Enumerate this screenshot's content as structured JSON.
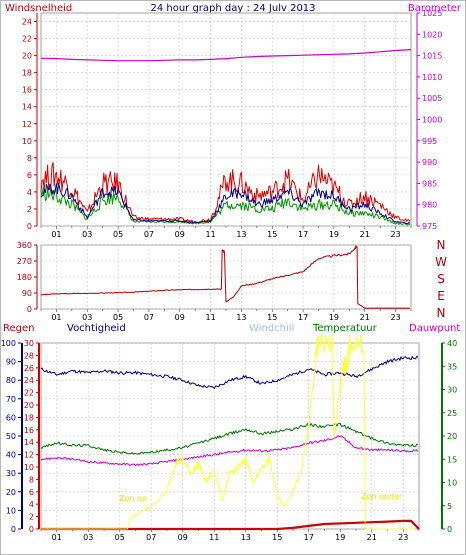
{
  "header": {
    "title": "24 hour graph day : 24 Julv 2013"
  },
  "colors": {
    "wind": "#e00000",
    "gust_base": "#009900",
    "wind_avg": "#000080",
    "barometer": "#cc00cc",
    "direction": "#b20000",
    "rain": "#cc0000",
    "humidity": "#000080",
    "windchill": "#9ec4e6",
    "temperature": "#007700",
    "dewpoint": "#cc00cc",
    "sun": "#ffff40",
    "grid": "#c8c8c8"
  },
  "chart_data": [
    {
      "type": "line",
      "id": "wind_barometer",
      "title": "24 hour graph day : 24 Julv 2013",
      "ylabel_left": "Windsnelheid",
      "ylabel_right": "Barometer",
      "x_ticks": [
        "01",
        "03",
        "05",
        "07",
        "09",
        "11",
        "13",
        "15",
        "17",
        "19",
        "21",
        "23"
      ],
      "y_left_ticks": [
        "0",
        "2",
        "4",
        "6",
        "8",
        "10",
        "12",
        "14",
        "16",
        "18",
        "20",
        "22",
        "24"
      ],
      "y_left_lim": [
        0,
        25
      ],
      "y_right_ticks": [
        "975",
        "980",
        "985",
        "990",
        "995",
        "1000",
        "1005",
        "1010",
        "1015",
        "1020",
        "1025"
      ],
      "y_right_lim": [
        975,
        1025
      ],
      "x_lim": [
        0,
        24
      ],
      "series": [
        {
          "name": "Barometer",
          "axis": "right",
          "x": [
            0,
            1,
            2,
            3,
            4,
            5,
            6,
            7,
            8,
            9,
            10,
            11,
            12,
            13,
            14,
            15,
            16,
            17,
            18,
            19,
            20,
            21,
            22,
            23,
            24
          ],
          "values": [
            1014.4,
            1014.3,
            1014.1,
            1014.0,
            1013.9,
            1013.8,
            1013.8,
            1013.8,
            1013.9,
            1014.0,
            1014.0,
            1014.1,
            1014.3,
            1014.6,
            1014.8,
            1014.9,
            1015.0,
            1015.1,
            1015.2,
            1015.3,
            1015.4,
            1015.6,
            1015.9,
            1016.2,
            1016.4
          ]
        },
        {
          "name": "wind_max",
          "axis": "left",
          "x": [
            0,
            1,
            2,
            3,
            4,
            5,
            6,
            7,
            8,
            9,
            10,
            11,
            12,
            13,
            14,
            15,
            16,
            17,
            18,
            19,
            20,
            21,
            22,
            23,
            24
          ],
          "values": [
            5.5,
            6,
            4.5,
            1.5,
            5,
            5,
            1,
            0.8,
            0.8,
            0.8,
            0.5,
            0.8,
            5.5,
            5,
            3.5,
            4,
            5.5,
            3,
            6,
            4.5,
            2.5,
            3.5,
            2.5,
            1,
            0.5
          ]
        },
        {
          "name": "wind_gust_base",
          "axis": "left",
          "x": [
            0,
            1,
            2,
            3,
            4,
            5,
            6,
            7,
            8,
            9,
            10,
            11,
            12,
            13,
            14,
            15,
            16,
            17,
            18,
            19,
            20,
            21,
            22,
            23,
            24
          ],
          "values": [
            4,
            3.5,
            2.5,
            0.8,
            3,
            3.5,
            0.5,
            0.5,
            0.5,
            0.5,
            0.3,
            0.5,
            2.5,
            2.5,
            2,
            2,
            3,
            2,
            2.5,
            2.5,
            1.5,
            1.5,
            1,
            0.3,
            0.2
          ]
        },
        {
          "name": "wind_avg",
          "axis": "left",
          "x": [
            0,
            1,
            2,
            3,
            4,
            5,
            6,
            7,
            8,
            9,
            10,
            11,
            12,
            13,
            14,
            15,
            16,
            17,
            18,
            19,
            20,
            21,
            22,
            23,
            24
          ],
          "values": [
            4,
            4.5,
            3.5,
            1,
            4,
            4,
            0.7,
            0.6,
            0.6,
            0.6,
            0.4,
            0.6,
            3.5,
            4,
            2.5,
            3,
            4,
            2.5,
            4,
            3.5,
            2,
            2.5,
            1.5,
            0.5,
            0.3
          ]
        }
      ]
    },
    {
      "type": "line",
      "id": "wind_direction",
      "y_ticks": [
        "0",
        "90",
        "180",
        "270",
        "360"
      ],
      "y_lim": [
        0,
        360
      ],
      "cardinal_labels": [
        "N",
        "W",
        "S",
        "E",
        "N"
      ],
      "x_ticks": [
        "01",
        "03",
        "05",
        "07",
        "09",
        "11",
        "13",
        "15",
        "17",
        "19",
        "21",
        "23"
      ],
      "x_lim": [
        0,
        24
      ],
      "series": [
        {
          "name": "Windrichting",
          "x": [
            0,
            1,
            3,
            4,
            5,
            6,
            7,
            8,
            9,
            10,
            11,
            11.7,
            11.75,
            11.9,
            12,
            12.5,
            13,
            14,
            15,
            16,
            17,
            18,
            19,
            20,
            20.5,
            20.55,
            21,
            22,
            23,
            24
          ],
          "values": [
            80,
            85,
            88,
            90,
            92,
            95,
            100,
            105,
            108,
            110,
            112,
            112,
            330,
            320,
            40,
            70,
            130,
            145,
            170,
            190,
            210,
            285,
            300,
            310,
            355,
            30,
            5,
            5,
            5,
            5
          ]
        }
      ]
    },
    {
      "type": "line",
      "id": "rain_humidity_temperature",
      "legend": [
        "Regen",
        "Vochtigheid",
        "Windchill",
        "Temperatuur",
        "Dauwpunt"
      ],
      "y_humidity_ticks": [
        "0",
        "10",
        "20",
        "30",
        "40",
        "50",
        "60",
        "70",
        "80",
        "90",
        "100"
      ],
      "y_humidity_lim": [
        0,
        100
      ],
      "y_rain_ticks": [
        "0",
        "2",
        "4",
        "6",
        "8",
        "10",
        "12",
        "14",
        "16",
        "18",
        "20",
        "22",
        "24",
        "26",
        "28",
        "30"
      ],
      "y_rain_lim": [
        0,
        30
      ],
      "y_temp_ticks": [
        "0",
        "5",
        "10",
        "15",
        "20",
        "25",
        "30",
        "35",
        "40"
      ],
      "y_temp_lim": [
        0,
        40
      ],
      "x_ticks": [
        "01",
        "03",
        "05",
        "07",
        "09",
        "11",
        "13",
        "15",
        "17",
        "19",
        "21",
        "23"
      ],
      "x_lim": [
        0,
        24
      ],
      "annotations": [
        "Zon op",
        "Zon onder"
      ],
      "series": [
        {
          "name": "Vochtigheid",
          "axis": "humidity",
          "x": [
            0,
            1,
            2,
            3,
            4,
            5,
            6,
            7,
            8,
            9,
            10,
            11,
            12,
            13,
            14,
            15,
            16,
            17,
            18,
            19,
            20,
            21,
            22,
            23,
            24
          ],
          "values": [
            86,
            83,
            85,
            84,
            85,
            84,
            84,
            83,
            82,
            80,
            77,
            76,
            80,
            82,
            78,
            80,
            83,
            86,
            83,
            84,
            82,
            86,
            90,
            92,
            92
          ]
        },
        {
          "name": "Temperatuur",
          "axis": "temp",
          "x": [
            0,
            1,
            2,
            3,
            4,
            5,
            6,
            7,
            8,
            9,
            10,
            11,
            12,
            13,
            14,
            15,
            16,
            17,
            18,
            19,
            20,
            21,
            22,
            23,
            24
          ],
          "values": [
            17.5,
            18.5,
            18,
            18,
            17,
            16.5,
            16.2,
            16.5,
            17,
            17.5,
            18.5,
            19.5,
            20.5,
            21.5,
            20.5,
            21,
            21.5,
            22.5,
            22,
            22.5,
            21,
            19.5,
            18.5,
            18,
            18
          ]
        },
        {
          "name": "Dauwpunt",
          "axis": "temp",
          "x": [
            0,
            1,
            2,
            3,
            4,
            5,
            6,
            7,
            8,
            9,
            10,
            11,
            12,
            13,
            14,
            15,
            16,
            17,
            18,
            19,
            20,
            21,
            22,
            23,
            24
          ],
          "values": [
            15,
            15.3,
            15,
            14.5,
            14.2,
            14,
            13.8,
            14,
            14.5,
            15,
            15.5,
            16,
            16.5,
            17,
            16.8,
            17,
            17.5,
            18.5,
            19,
            20,
            17.5,
            17,
            17,
            16.8,
            16.8
          ]
        },
        {
          "name": "Regen",
          "axis": "rain",
          "x": [
            0,
            1,
            5,
            10,
            15,
            16,
            17,
            18,
            20,
            21,
            22,
            23,
            23.5,
            24
          ],
          "values": [
            0,
            0,
            0,
            0,
            0,
            0.2,
            0.5,
            0.8,
            1,
            1.1,
            1.2,
            1.3,
            1.3,
            0
          ]
        },
        {
          "name": "Zon",
          "axis": "temp",
          "x": [
            0,
            5.5,
            5.6,
            6,
            7,
            8,
            8.5,
            9,
            9.5,
            10,
            10.5,
            11,
            11.5,
            12,
            12.5,
            13,
            13.5,
            14,
            14.5,
            15,
            15.5,
            16,
            16.5,
            17,
            17.5,
            17.6,
            18.5,
            18.6,
            19,
            19.2,
            19.5,
            19.6,
            20.5,
            20.6,
            24
          ],
          "values": [
            0,
            0,
            2,
            3,
            5,
            8,
            14,
            15,
            12,
            14,
            10,
            13,
            6,
            12,
            13,
            15,
            10,
            13,
            15,
            7,
            5,
            8,
            12,
            22,
            38,
            40,
            40,
            20,
            30,
            35,
            36,
            40,
            40,
            0,
            0
          ]
        }
      ]
    }
  ]
}
